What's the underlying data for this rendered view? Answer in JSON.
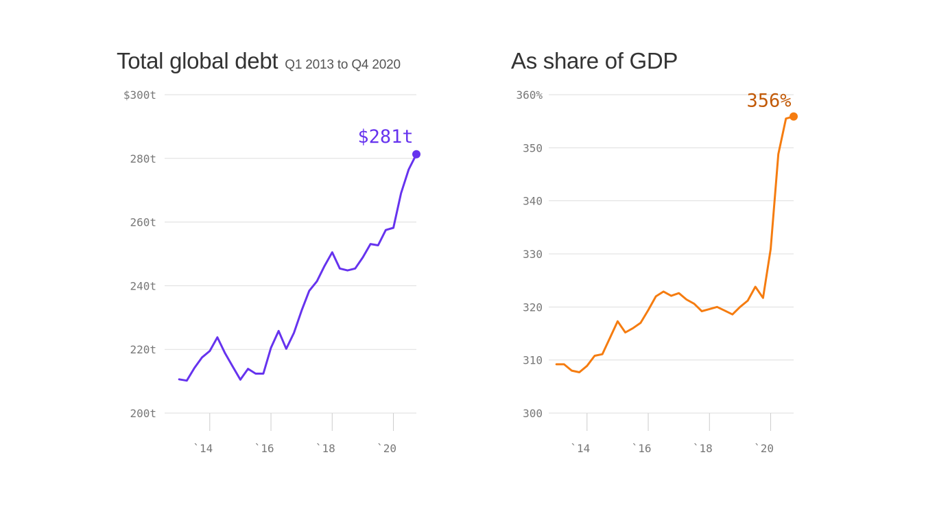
{
  "charts_meta": {
    "left_title": "Total global debt",
    "left_subtitle": "Q1 2013 to Q4 2020",
    "right_title": "As share of GDP"
  },
  "chart_data": [
    {
      "type": "line",
      "title": "Total global debt",
      "subtitle": "Q1 2013 to Q4 2020",
      "color": "#6633ee",
      "y_ticks": [
        200,
        220,
        240,
        260,
        280,
        300
      ],
      "y_tick_labels": [
        "200t",
        "220t",
        "240t",
        "260t",
        "280t",
        "$300t"
      ],
      "ylim": [
        200,
        300
      ],
      "x_ticks": [
        2014,
        2016,
        2018,
        2020
      ],
      "x_tick_labels": [
        "`14",
        "`16",
        "`18",
        "`20"
      ],
      "xlim": [
        2012.75,
        2020.75
      ],
      "grid": true,
      "end_label": "$281t",
      "x": [
        2013.0,
        2013.25,
        2013.5,
        2013.75,
        2014.0,
        2014.25,
        2014.5,
        2014.75,
        2015.0,
        2015.25,
        2015.5,
        2015.75,
        2016.0,
        2016.25,
        2016.5,
        2016.75,
        2017.0,
        2017.25,
        2017.5,
        2017.75,
        2018.0,
        2018.25,
        2018.5,
        2018.75,
        2019.0,
        2019.25,
        2019.5,
        2019.75,
        2020.0,
        2020.25,
        2020.5,
        2020.75
      ],
      "values": [
        210.6,
        210.2,
        214.2,
        217.5,
        219.5,
        223.8,
        218.8,
        214.6,
        210.5,
        213.9,
        212.4,
        212.4,
        220.5,
        225.8,
        220.2,
        225.2,
        232.2,
        238.4,
        241.4,
        246.2,
        250.5,
        245.4,
        244.8,
        245.4,
        248.9,
        253.1,
        252.7,
        257.5,
        258.2,
        269.1,
        276.5,
        281.3
      ]
    },
    {
      "type": "line",
      "title": "As share of GDP",
      "color": "#f57c10",
      "label_color": "#c25a08",
      "y_ticks": [
        300,
        310,
        320,
        330,
        340,
        350,
        360
      ],
      "y_tick_labels": [
        "300",
        "310",
        "320",
        "330",
        "340",
        "350",
        "360%"
      ],
      "ylim": [
        300,
        360
      ],
      "x_ticks": [
        2014,
        2016,
        2018,
        2020
      ],
      "x_tick_labels": [
        "`14",
        "`16",
        "`18",
        "`20"
      ],
      "xlim": [
        2012.75,
        2020.75
      ],
      "grid": true,
      "end_label": "356%",
      "x": [
        2013.0,
        2013.25,
        2013.5,
        2013.75,
        2014.0,
        2014.25,
        2014.5,
        2014.75,
        2015.0,
        2015.25,
        2015.5,
        2015.75,
        2016.0,
        2016.25,
        2016.5,
        2016.75,
        2017.0,
        2017.25,
        2017.5,
        2017.75,
        2018.0,
        2018.25,
        2018.5,
        2018.75,
        2019.0,
        2019.25,
        2019.5,
        2019.75,
        2020.0,
        2020.25,
        2020.5,
        2020.75
      ],
      "values": [
        309.2,
        309.2,
        308.0,
        307.7,
        308.9,
        310.8,
        311.1,
        314.2,
        317.3,
        315.2,
        316.0,
        317.0,
        319.4,
        322.0,
        322.9,
        322.1,
        322.6,
        321.4,
        320.6,
        319.2,
        319.6,
        320.0,
        319.3,
        318.6,
        320.0,
        321.2,
        323.8,
        321.7,
        330.9,
        348.8,
        355.5,
        355.9
      ]
    }
  ]
}
